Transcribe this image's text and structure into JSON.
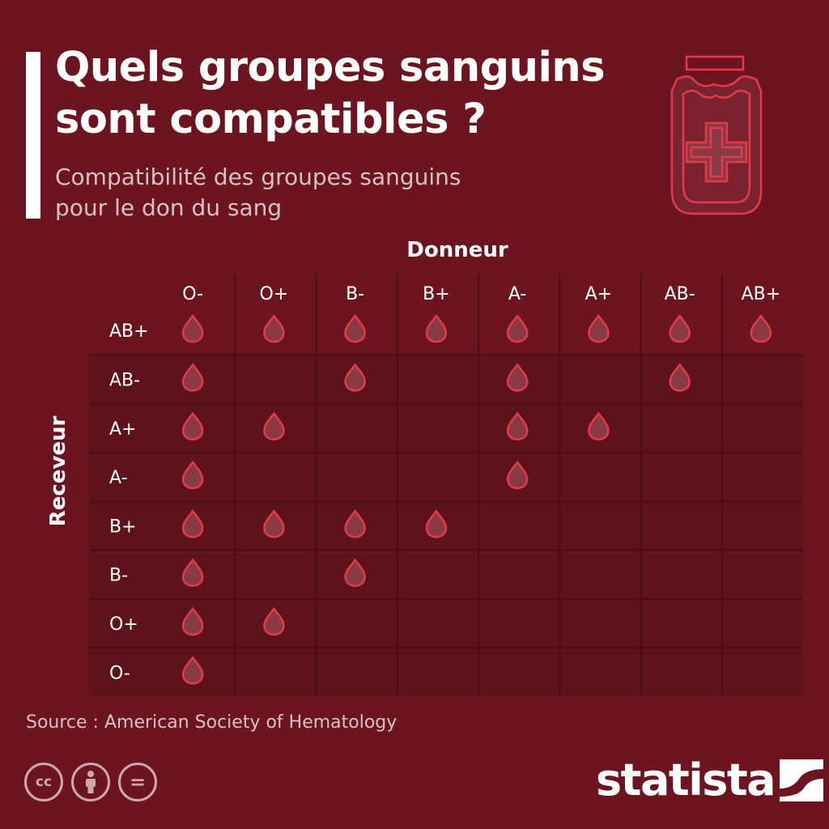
{
  "header": {
    "title_line1": "Quels groupes sanguins",
    "title_line2": "sont compatibles ?",
    "subtitle_line1": "Compatibilité des groupes sanguins",
    "subtitle_line2": "pour le don du sang"
  },
  "chart_data": {
    "type": "table",
    "xlabel": "Donneur",
    "ylabel": "Receveur",
    "columns": [
      "O-",
      "O+",
      "B-",
      "B+",
      "A-",
      "A+",
      "AB-",
      "AB+"
    ],
    "rows": [
      {
        "label": "AB+",
        "compatible": [
          true,
          true,
          true,
          true,
          true,
          true,
          true,
          true
        ]
      },
      {
        "label": "AB-",
        "compatible": [
          true,
          false,
          true,
          false,
          true,
          false,
          true,
          false
        ]
      },
      {
        "label": "A+",
        "compatible": [
          true,
          true,
          false,
          false,
          true,
          true,
          false,
          false
        ]
      },
      {
        "label": "A-",
        "compatible": [
          true,
          false,
          false,
          false,
          true,
          false,
          false,
          false
        ]
      },
      {
        "label": "B+",
        "compatible": [
          true,
          true,
          true,
          true,
          false,
          false,
          false,
          false
        ]
      },
      {
        "label": "B-",
        "compatible": [
          true,
          false,
          true,
          false,
          false,
          false,
          false,
          false
        ]
      },
      {
        "label": "O+",
        "compatible": [
          true,
          true,
          false,
          false,
          false,
          false,
          false,
          false
        ]
      },
      {
        "label": "O-",
        "compatible": [
          true,
          false,
          false,
          false,
          false,
          false,
          false,
          false
        ]
      }
    ],
    "marker_icon": "blood-drop-icon",
    "colors": {
      "background": "#6c1520",
      "cell": "#5e121c",
      "drop_fill": "#8a3a45",
      "drop_stroke": "#e23a48"
    }
  },
  "footer": {
    "source": "Source : American Society of Hematology",
    "license_icons": [
      "cc-icon",
      "attribution-icon",
      "no-derivatives-icon"
    ],
    "license_cc": "cc",
    "license_eq": "=",
    "brand": "statista"
  }
}
